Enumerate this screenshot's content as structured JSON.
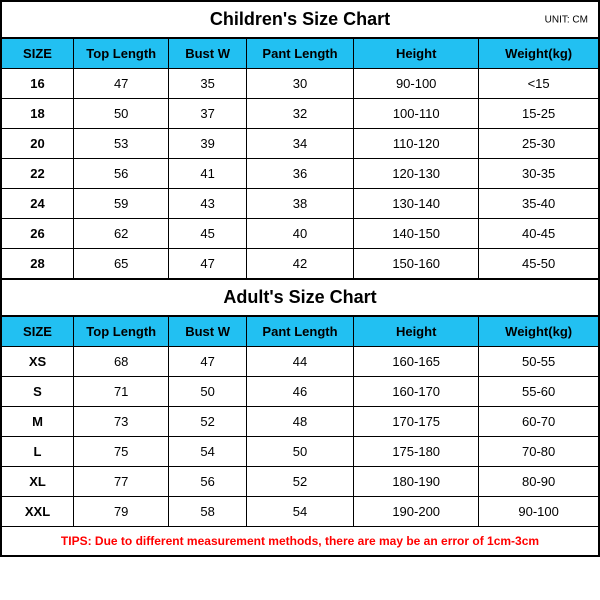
{
  "colors": {
    "header_bg": "#22c0f2",
    "border": "#000000",
    "tips_text": "#ff0000",
    "background": "#ffffff",
    "text": "#000000"
  },
  "typography": {
    "title_fontsize": 18,
    "unit_fontsize": 10,
    "header_fontsize": 13,
    "cell_fontsize": 13,
    "tips_fontsize": 12,
    "font_family": "Arial, Helvetica, sans-serif"
  },
  "layout": {
    "col_widths_pct": [
      12,
      16,
      13,
      18,
      21,
      20
    ],
    "cell_align": "center"
  },
  "children_chart": {
    "type": "table",
    "title": "Children's Size Chart",
    "unit_label": "UNIT: CM",
    "columns": [
      "SIZE",
      "Top Length",
      "Bust W",
      "Pant Length",
      "Height",
      "Weight(kg)"
    ],
    "rows": [
      [
        "16",
        "47",
        "35",
        "30",
        "90-100",
        "<15"
      ],
      [
        "18",
        "50",
        "37",
        "32",
        "100-110",
        "15-25"
      ],
      [
        "20",
        "53",
        "39",
        "34",
        "110-120",
        "25-30"
      ],
      [
        "22",
        "56",
        "41",
        "36",
        "120-130",
        "30-35"
      ],
      [
        "24",
        "59",
        "43",
        "38",
        "130-140",
        "35-40"
      ],
      [
        "26",
        "62",
        "45",
        "40",
        "140-150",
        "40-45"
      ],
      [
        "28",
        "65",
        "47",
        "42",
        "150-160",
        "45-50"
      ]
    ]
  },
  "adult_chart": {
    "type": "table",
    "title": "Adult's Size Chart",
    "columns": [
      "SIZE",
      "Top Length",
      "Bust W",
      "Pant Length",
      "Height",
      "Weight(kg)"
    ],
    "rows": [
      [
        "XS",
        "68",
        "47",
        "44",
        "160-165",
        "50-55"
      ],
      [
        "S",
        "71",
        "50",
        "46",
        "160-170",
        "55-60"
      ],
      [
        "M",
        "73",
        "52",
        "48",
        "170-175",
        "60-70"
      ],
      [
        "L",
        "75",
        "54",
        "50",
        "175-180",
        "70-80"
      ],
      [
        "XL",
        "77",
        "56",
        "52",
        "180-190",
        "80-90"
      ],
      [
        "XXL",
        "79",
        "58",
        "54",
        "190-200",
        "90-100"
      ]
    ]
  },
  "tips": "TIPS: Due to different measurement methods, there are may be an error of 1cm-3cm"
}
